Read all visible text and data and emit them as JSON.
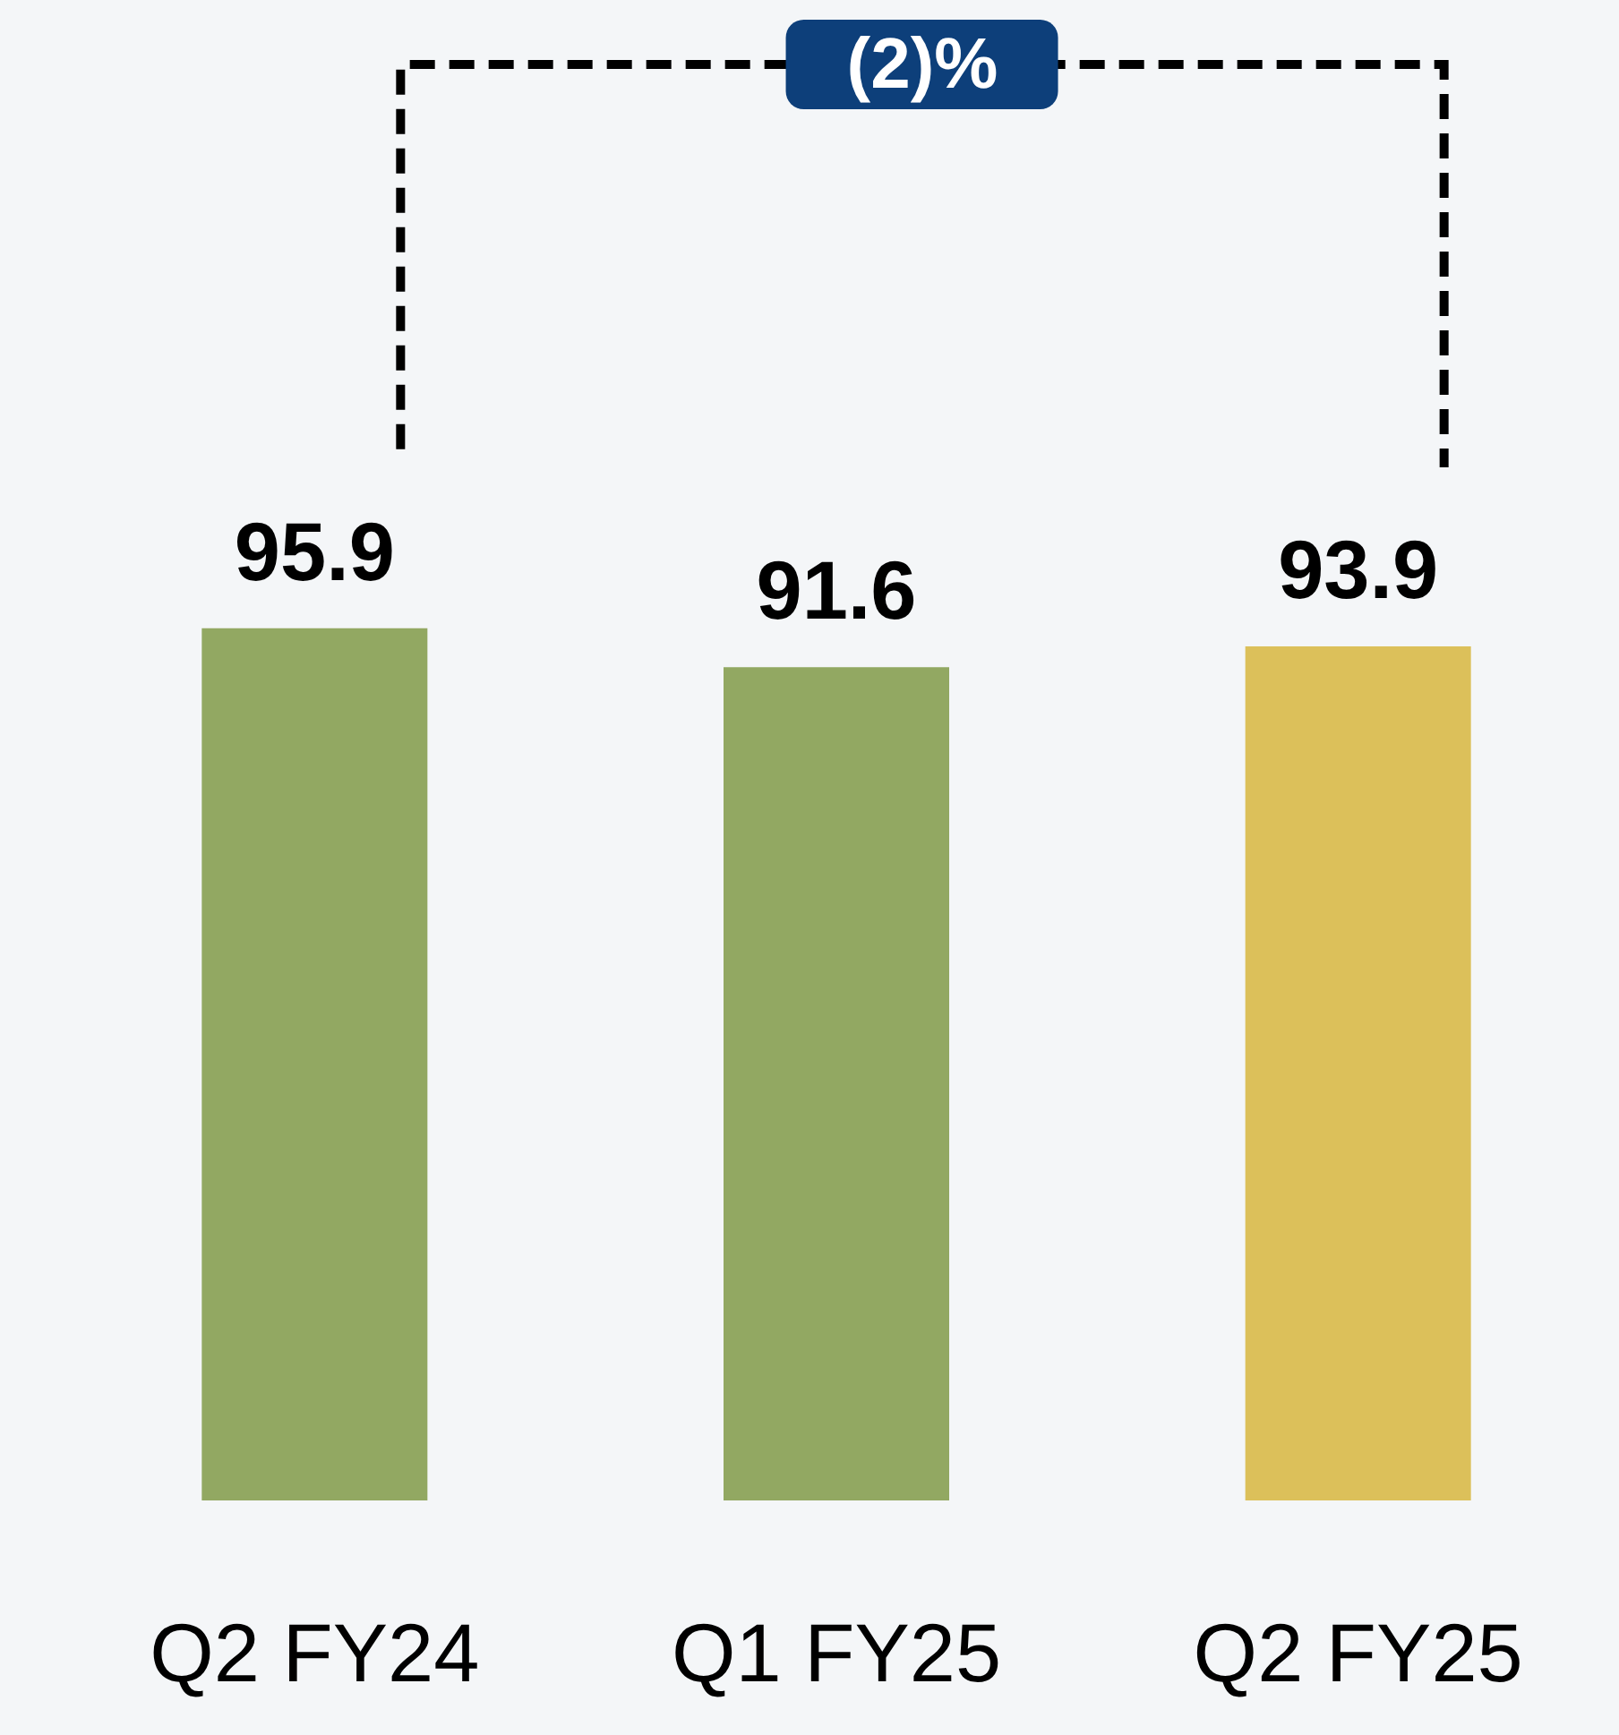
{
  "chart_data": {
    "type": "bar",
    "categories": [
      "Q2 FY24",
      "Q1 FY25",
      "Q2 FY25"
    ],
    "values": [
      95.9,
      91.6,
      93.9
    ],
    "colors": [
      "#92a862",
      "#92a862",
      "#dcc05a"
    ],
    "tick_labels": "x",
    "data_labels": true,
    "annotations": [
      "(2)%"
    ]
  }
}
